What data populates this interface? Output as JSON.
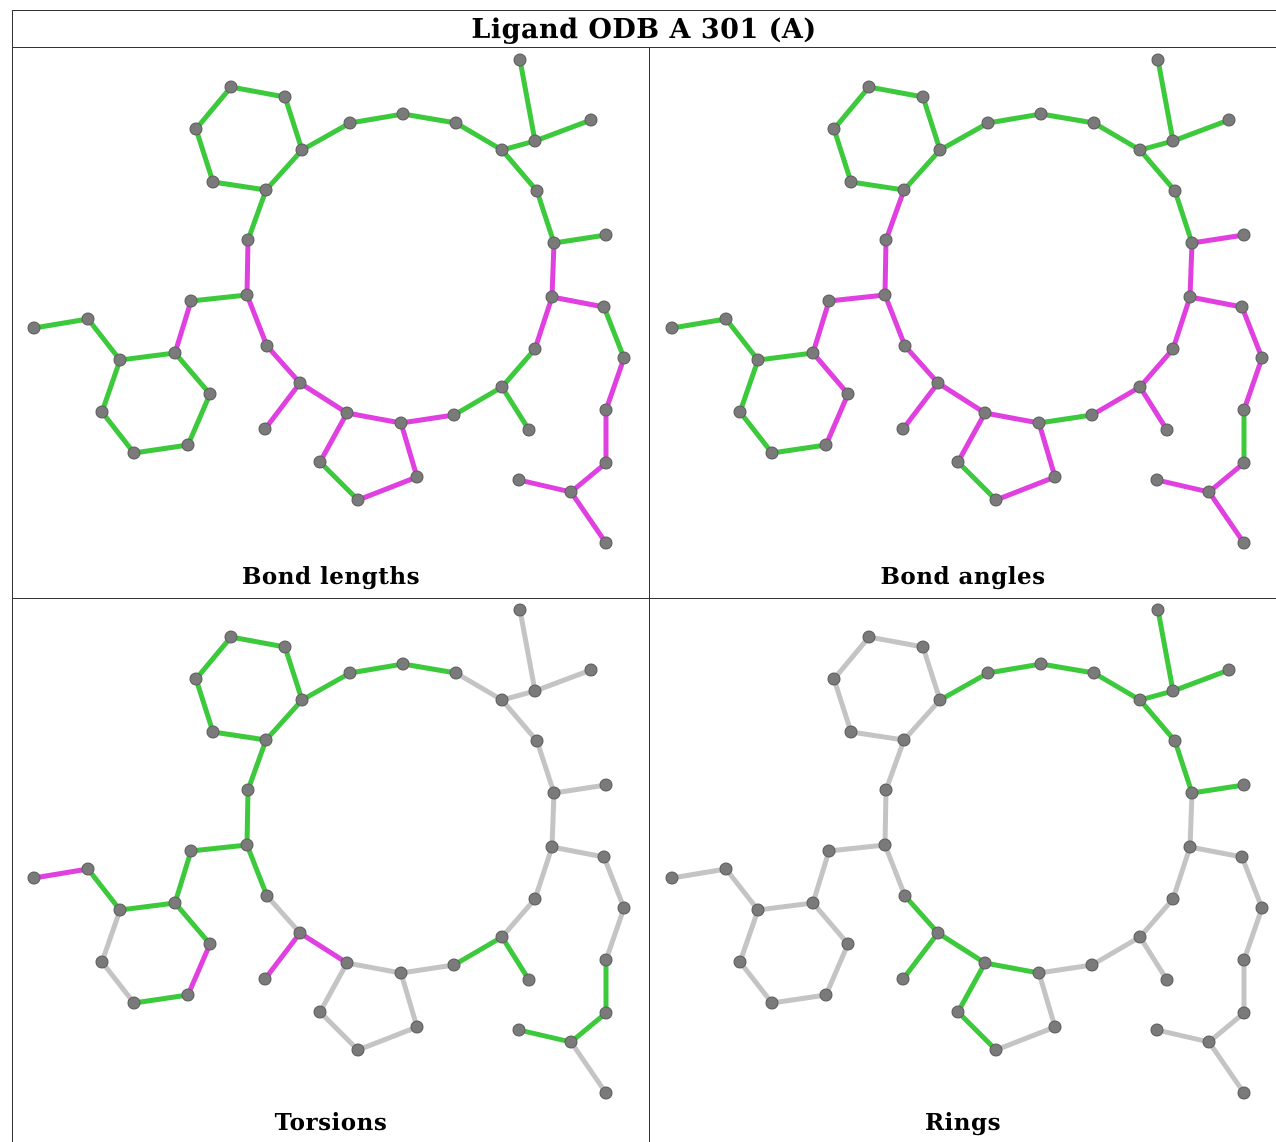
{
  "title": "Ligand ODB A 301 (A)",
  "colors": {
    "green": "#3cc93c",
    "magenta": "#e040e0",
    "gray": "#c4c4c4",
    "atom": "#7a7a7a"
  },
  "panels": [
    {
      "caption": "Bond lengths",
      "bonds": "ggggggggggggggggmmgmmmmmmgggmmmgmmmmmmmggmgggggggggggmmmgggggmmggmmmgggmmm"
    },
    {
      "caption": "Bond angles",
      "bonds": "gggggggggggggggmmmmmgmmmmmmmgmmgmmmmmmmmmmmmgggggggmmmmgggggmmgmmmgggggg"
    },
    {
      "caption": "Torsions",
      "bonds": "gggggggggnnnnnnnnnnngggnnnggnnnnnnmmnggggggmgnnggmggmnnnnnnmmgnnnnmmgnnn"
    },
    {
      "caption": "Rings",
      "bonds": "nnnnnnggggggggggnnnnnnnnnnnnnnnggggggnnnnnnnnnnnnnnnnnnnnnnnnnnnnnnnnnn"
    }
  ]
}
